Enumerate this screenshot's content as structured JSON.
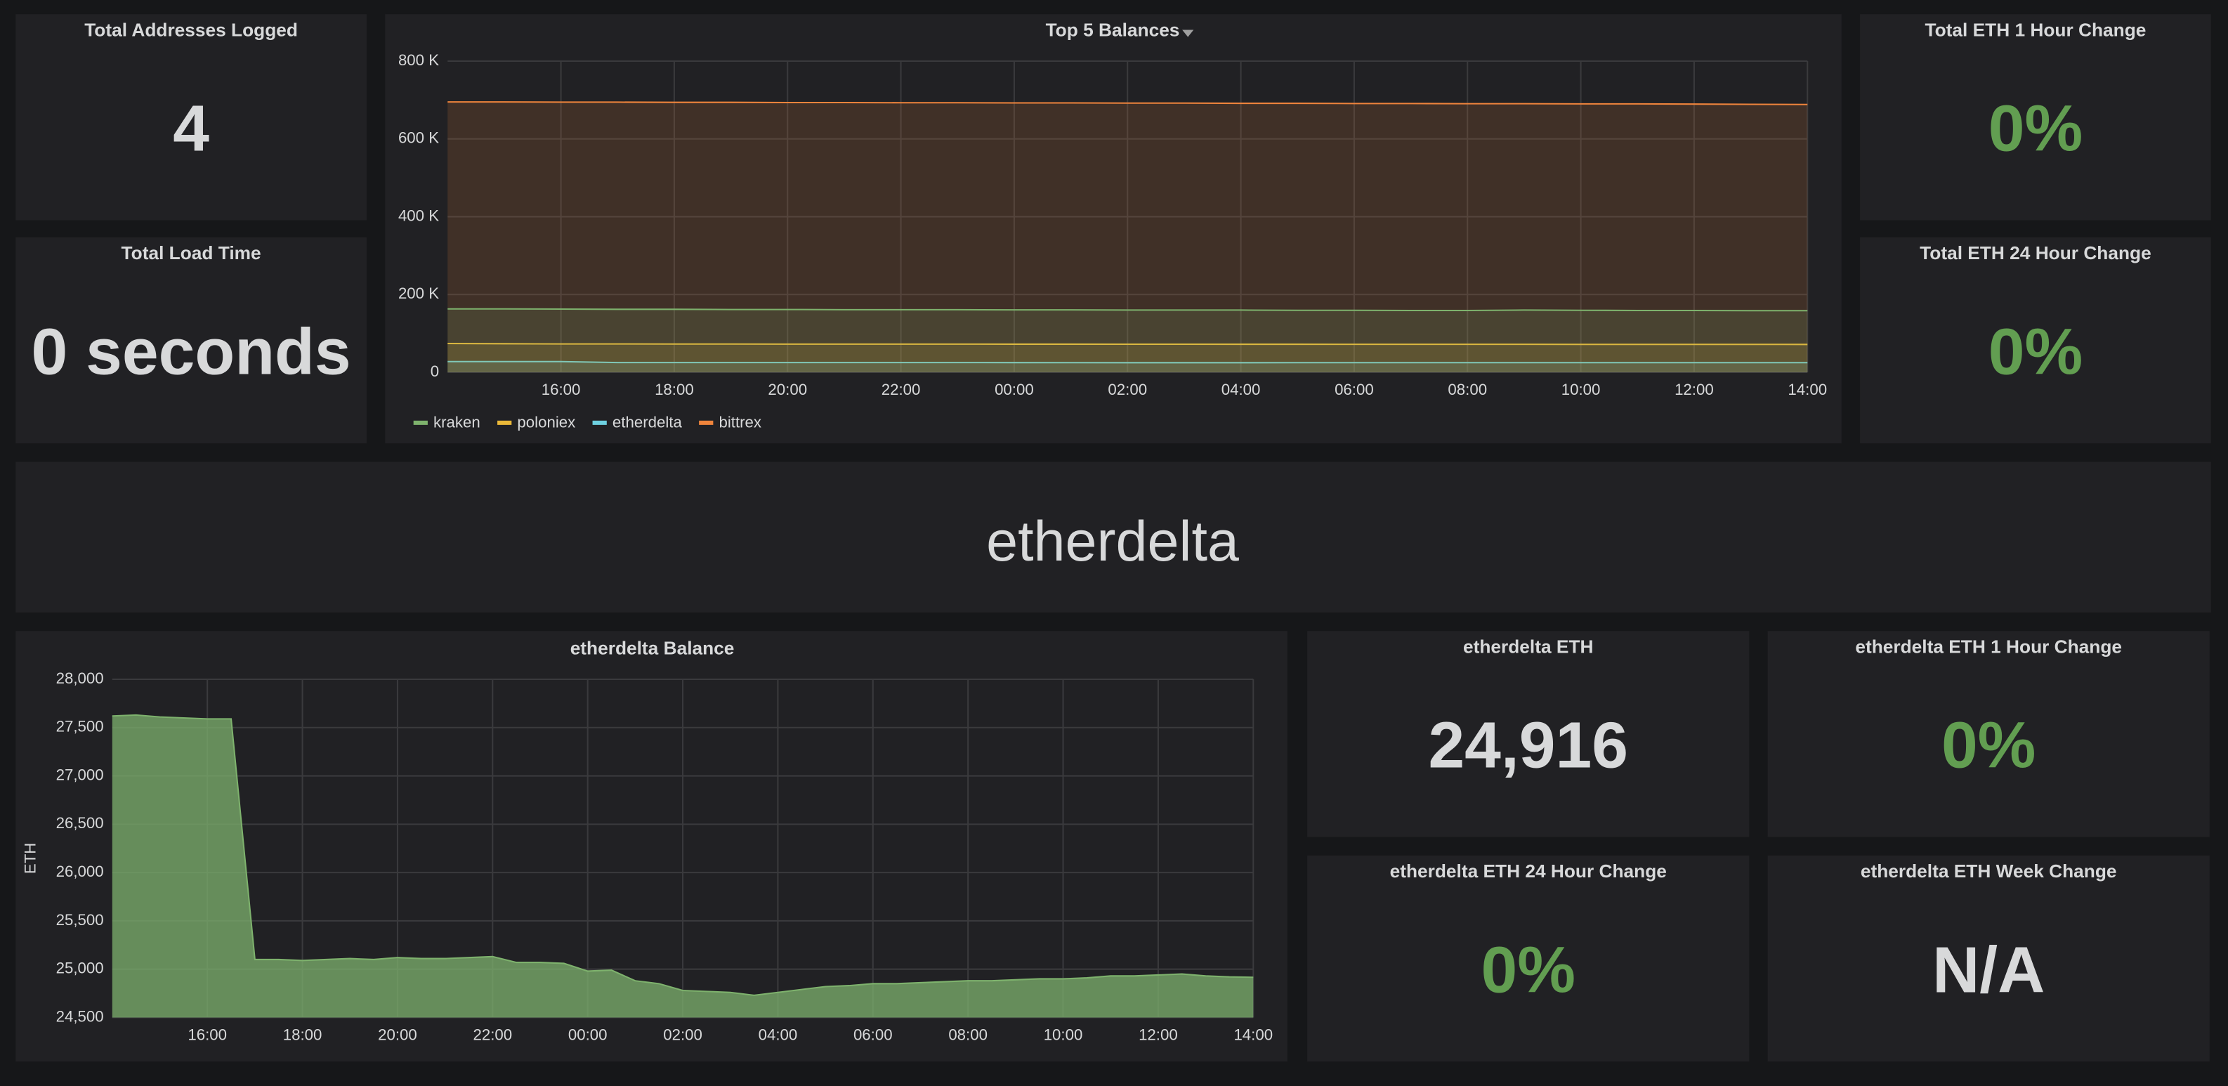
{
  "stats": [
    {
      "title": "Total Addresses Logged",
      "value": "4"
    },
    {
      "title": "Total Load Time",
      "value": "0 seconds"
    },
    {
      "title": "Total ETH 1 Hour Change",
      "value": "0%"
    },
    {
      "title": "Total ETH 24 Hour Change",
      "value": "0%"
    },
    {
      "title": "etherdelta ETH",
      "value": "24,916"
    },
    {
      "title": "etherdelta ETH 1 Hour Change",
      "value": "0%"
    },
    {
      "title": "etherdelta ETH 24 Hour Change",
      "value": "0%"
    },
    {
      "title": "etherdelta ETH Week Change",
      "value": "N/A"
    }
  ],
  "text_panel": "etherdelta",
  "chart_data": [
    {
      "type": "area",
      "title": "Top 5 Balances",
      "categories": [
        null,
        null,
        "16:00",
        null,
        "18:00",
        null,
        "20:00",
        null,
        "22:00",
        null,
        "00:00",
        null,
        "02:00",
        null,
        "04:00",
        null,
        "06:00",
        null,
        "08:00",
        null,
        "10:00",
        null,
        "12:00",
        null,
        "14:00"
      ],
      "series": [
        {
          "name": "kraken",
          "color": "#7eb26d",
          "values": [
            163000,
            163000,
            162500,
            162000,
            162000,
            161500,
            161500,
            161000,
            161000,
            161000,
            160500,
            160500,
            160000,
            160000,
            160000,
            159500,
            159500,
            159000,
            159000,
            160000,
            159500,
            159000,
            159000,
            158500,
            158500
          ]
        },
        {
          "name": "poloniex",
          "color": "#eab839",
          "values": [
            74000,
            73500,
            73000,
            73000,
            72800,
            72800,
            72600,
            72600,
            72500,
            72500,
            72400,
            72400,
            72300,
            72300,
            72200,
            72200,
            72100,
            72100,
            72000,
            72000,
            71900,
            71900,
            71800,
            71800,
            71700
          ]
        },
        {
          "name": "etherdelta",
          "color": "#6ed0e0",
          "values": [
            27620,
            27610,
            27590,
            25100,
            25090,
            25110,
            25120,
            25110,
            25130,
            25070,
            24980,
            24880,
            24780,
            24760,
            24760,
            24820,
            24850,
            24860,
            24880,
            24890,
            24900,
            24930,
            24940,
            24930,
            24916
          ]
        },
        {
          "name": "bittrex",
          "color": "#ef843c",
          "values": [
            695000,
            695000,
            694500,
            694500,
            694000,
            694000,
            693500,
            693500,
            693000,
            693000,
            692500,
            692500,
            692000,
            692000,
            691500,
            691500,
            691000,
            691000,
            690500,
            690500,
            690000,
            690000,
            689500,
            689000,
            688500
          ]
        }
      ],
      "ylim": [
        0,
        800000
      ],
      "yticks": [
        0,
        {
          "value": 200000,
          "label": "200 K"
        },
        {
          "value": 400000,
          "label": "400 K"
        },
        {
          "value": 600000,
          "label": "600 K"
        },
        {
          "value": 800000,
          "label": "800 K"
        }
      ],
      "grid": true,
      "legend": "bottom"
    },
    {
      "type": "area",
      "title": "etherdelta Balance",
      "ylabel": "ETH",
      "categories": [
        null,
        null,
        null,
        null,
        "16:00",
        null,
        null,
        null,
        "18:00",
        null,
        null,
        null,
        "20:00",
        null,
        null,
        null,
        "22:00",
        null,
        null,
        null,
        "00:00",
        null,
        null,
        null,
        "02:00",
        null,
        null,
        null,
        "04:00",
        null,
        null,
        null,
        "06:00",
        null,
        null,
        null,
        "08:00",
        null,
        null,
        null,
        "10:00",
        null,
        null,
        null,
        "12:00",
        null,
        null,
        null,
        "14:00"
      ],
      "values": [
        27620,
        27630,
        27610,
        27600,
        27590,
        27590,
        25100,
        25100,
        25090,
        25100,
        25110,
        25100,
        25120,
        25110,
        25110,
        25120,
        25130,
        25070,
        25070,
        25060,
        24980,
        24990,
        24880,
        24850,
        24780,
        24770,
        24760,
        24730,
        24760,
        24790,
        24820,
        24830,
        24850,
        24850,
        24860,
        24870,
        24880,
        24880,
        24890,
        24900,
        24900,
        24910,
        24930,
        24930,
        24940,
        24950,
        24930,
        24920,
        24916
      ],
      "color": "#7eb26d",
      "ylim": [
        24500,
        28000
      ],
      "yticks": [
        {
          "value": 24500,
          "label": "24,500"
        },
        {
          "value": 25000,
          "label": "25,000"
        },
        {
          "value": 25500,
          "label": "25,500"
        },
        {
          "value": 26000,
          "label": "26,000"
        },
        {
          "value": 26500,
          "label": "26,500"
        },
        {
          "value": 27000,
          "label": "27,000"
        },
        {
          "value": 27500,
          "label": "27,500"
        },
        {
          "value": 28000,
          "label": "28,000"
        }
      ],
      "grid": true
    }
  ]
}
